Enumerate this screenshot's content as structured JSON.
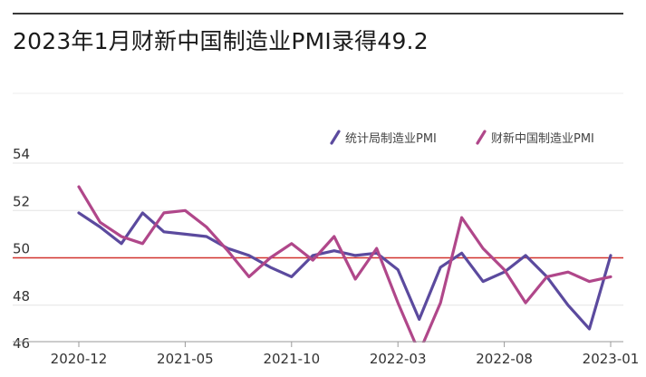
{
  "title": "2023年1月财新中国制造业PMI录得49.2",
  "chart_data": {
    "type": "line",
    "x": [
      "2020-12",
      "2021-01",
      "2021-02",
      "2021-03",
      "2021-04",
      "2021-05",
      "2021-06",
      "2021-07",
      "2021-08",
      "2021-09",
      "2021-10",
      "2021-11",
      "2021-12",
      "2022-01",
      "2022-02",
      "2022-03",
      "2022-04",
      "2022-05",
      "2022-06",
      "2022-07",
      "2022-08",
      "2022-09",
      "2022-10",
      "2022-11",
      "2022-12",
      "2023-01"
    ],
    "x_tick_labels": [
      "2020-12",
      "2021-05",
      "2021-10",
      "2022-03",
      "2022-08",
      "2023-01"
    ],
    "ylim": [
      46,
      54
    ],
    "y_ticks": [
      46,
      48,
      50,
      52,
      54
    ],
    "reference_line": 50,
    "legend_position": "top-right",
    "series": [
      {
        "name": "统计局制造业PMI",
        "color": "#5b4a9e",
        "values": [
          51.9,
          51.3,
          50.6,
          51.9,
          51.1,
          51.0,
          50.9,
          50.4,
          50.1,
          49.6,
          49.2,
          50.1,
          50.3,
          50.1,
          50.2,
          49.5,
          47.4,
          49.6,
          50.2,
          49.0,
          49.4,
          50.1,
          49.2,
          48.0,
          47.0,
          50.1
        ]
      },
      {
        "name": "财新中国制造业PMI",
        "color": "#b0478a",
        "values": [
          53.0,
          51.5,
          50.9,
          50.6,
          51.9,
          52.0,
          51.3,
          50.3,
          49.2,
          50.0,
          50.6,
          49.9,
          50.9,
          49.1,
          50.4,
          48.1,
          46.0,
          48.1,
          51.7,
          50.4,
          49.5,
          48.1,
          49.2,
          49.4,
          49.0,
          49.2
        ]
      }
    ]
  }
}
